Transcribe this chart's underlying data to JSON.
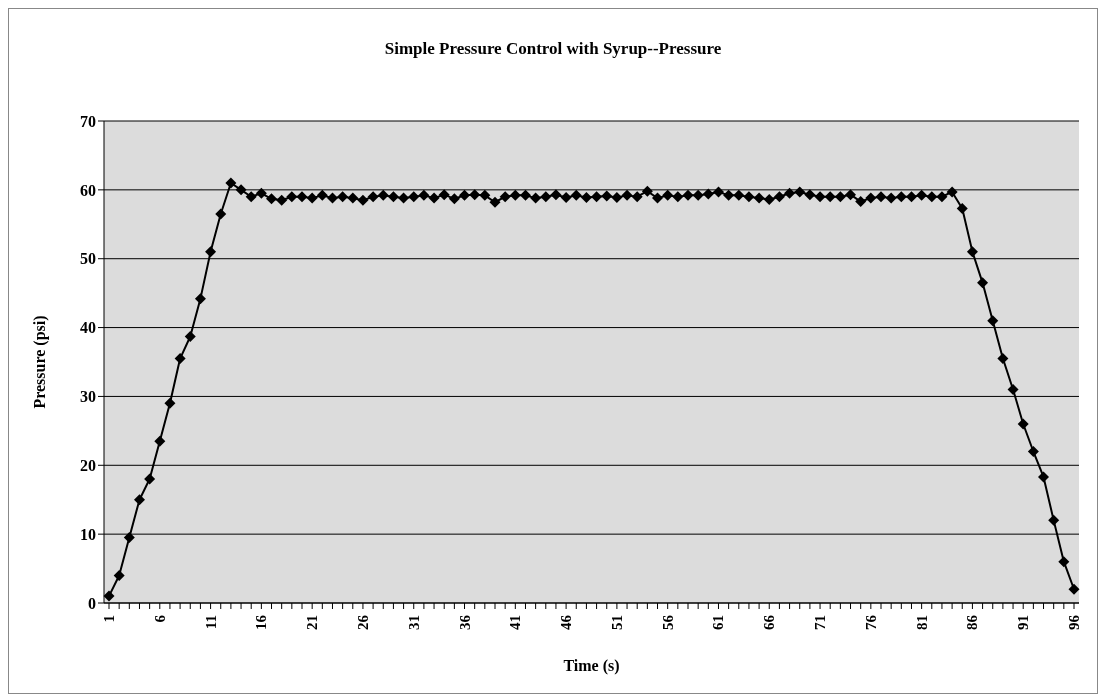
{
  "chart_data": {
    "type": "line",
    "title": "Simple Pressure Control with Syrup--Pressure",
    "xlabel": "Time (s)",
    "ylabel": "Pressure (psi)",
    "categories": [
      "1",
      null,
      null,
      null,
      null,
      "6",
      null,
      null,
      null,
      null,
      "11",
      null,
      null,
      null,
      null,
      "16",
      null,
      null,
      null,
      null,
      "21",
      null,
      null,
      null,
      null,
      "26",
      null,
      null,
      null,
      null,
      "31",
      null,
      null,
      null,
      null,
      "36",
      null,
      null,
      null,
      null,
      "41",
      null,
      null,
      null,
      null,
      "46",
      null,
      null,
      null,
      null,
      "51",
      null,
      null,
      null,
      null,
      "56",
      null,
      null,
      null,
      null,
      "61",
      null,
      null,
      null,
      null,
      "66",
      null,
      null,
      null,
      null,
      "71",
      null,
      null,
      null,
      null,
      "76",
      null,
      null,
      null,
      null,
      "81",
      null,
      null,
      null,
      null,
      "86",
      null,
      null,
      null,
      null,
      "91",
      null,
      null,
      null,
      null,
      "96"
    ],
    "series": [
      {
        "color": "#000000",
        "values": [
          1,
          4,
          9.5,
          15,
          18,
          23.5,
          29,
          35.5,
          38.7,
          44.2,
          51,
          56.5,
          61,
          60,
          59,
          59.5,
          58.7,
          58.5,
          59,
          59,
          58.8,
          59.2,
          58.8,
          59,
          58.8,
          58.5,
          59,
          59.2,
          59,
          58.8,
          59,
          59.2,
          58.8,
          59.3,
          58.7,
          59.2,
          59.3,
          59.2,
          58.2,
          59,
          59.2,
          59.2,
          58.8,
          59,
          59.3,
          58.9,
          59.2,
          58.9,
          59,
          59.1,
          58.9,
          59.2,
          59,
          59.8,
          58.8,
          59.2,
          59,
          59.2,
          59.2,
          59.4,
          59.7,
          59.2,
          59.2,
          59,
          58.8,
          58.6,
          59,
          59.5,
          59.7,
          59.3,
          59,
          59,
          59,
          59.3,
          58.3,
          58.8,
          59,
          58.8,
          59,
          59,
          59.2,
          59,
          59,
          59.7,
          57.3,
          51,
          46.5,
          41,
          35.5,
          31,
          26,
          22,
          18.3,
          12,
          6,
          2
        ]
      }
    ],
    "ylim": [
      0,
      70
    ],
    "yticks": [
      0,
      10,
      20,
      30,
      40,
      50,
      60,
      70
    ],
    "grid": "y",
    "marker": "diamond",
    "line_style": "solid"
  }
}
